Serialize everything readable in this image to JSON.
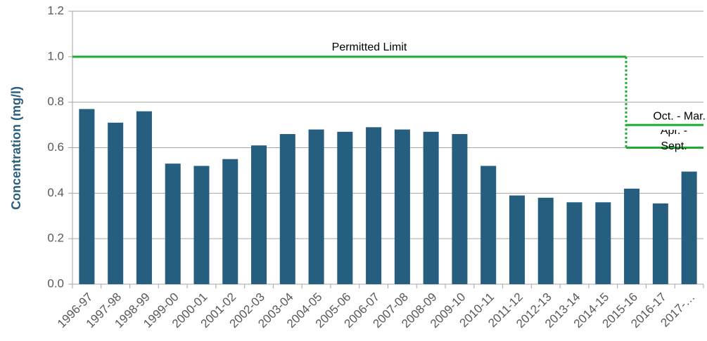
{
  "chart_data": {
    "type": "bar",
    "y_label": "Concentration (mg/l)",
    "categories": [
      "1996-97",
      "1997-98",
      "1998-99",
      "1999-00",
      "2000-01",
      "2001-02",
      "2002-03",
      "2003-04",
      "2004-05",
      "2005-06",
      "2006-07",
      "2007-08",
      "2008-09",
      "2009-10",
      "2010-11",
      "2011-12",
      "2012-13",
      "2013-14",
      "2014-15",
      "2015-16",
      "2016-17",
      "2017-…"
    ],
    "values": [
      0.77,
      0.71,
      0.76,
      0.53,
      0.52,
      0.55,
      0.61,
      0.66,
      0.68,
      0.67,
      0.69,
      0.68,
      0.67,
      0.66,
      0.52,
      0.39,
      0.38,
      0.36,
      0.36,
      0.42,
      0.355,
      0.495
    ],
    "color": "#255e7e",
    "ylim": [
      0,
      1.2
    ],
    "yticks": [
      {
        "value": 0,
        "label": "0.0"
      },
      0.2,
      0.4,
      0.6,
      0.8,
      {
        "value": 1,
        "label": "1.0"
      },
      1.2
    ],
    "grid": true,
    "limits": [
      {
        "label": "Permitted Limit",
        "value": 1.0,
        "color": "#1aab2f"
      },
      {
        "label": "Oct. - Mar.",
        "value": 0.7,
        "color": "#1aab2f"
      },
      {
        "label": "Apr. - Sept.",
        "value": 0.6,
        "color": "#1aab2f"
      }
    ]
  }
}
